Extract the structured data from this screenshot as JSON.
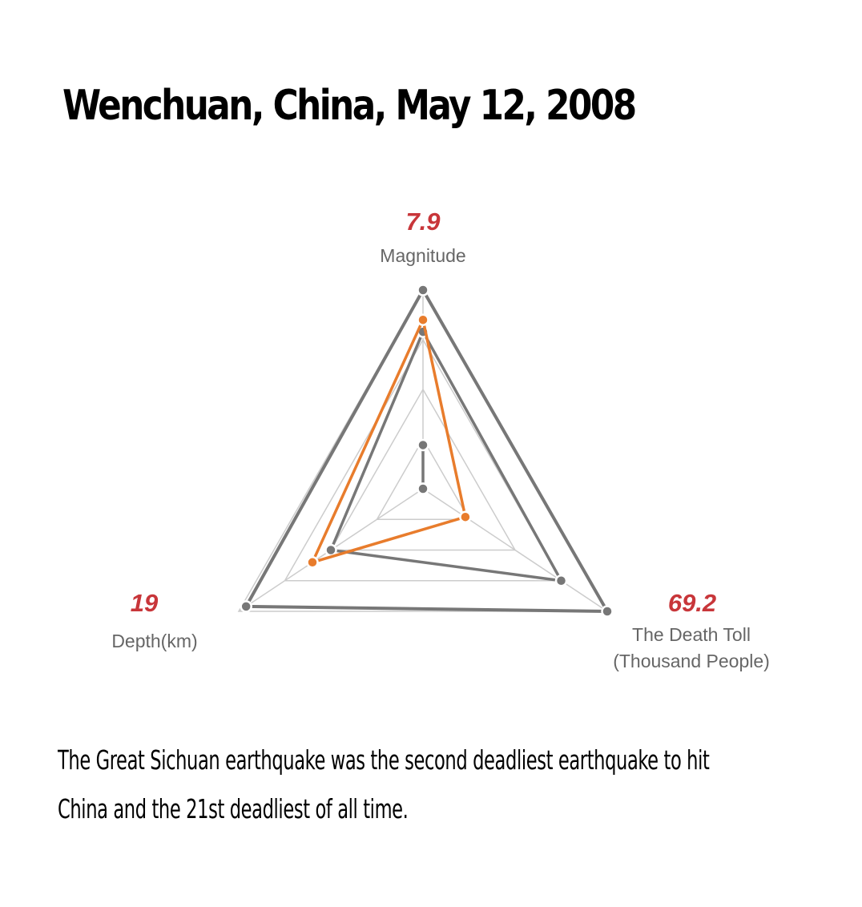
{
  "title": "Wenchuan, China, May 12, 2008",
  "description": "The Great Sichuan earthquake was the second deadliest earthquake to hit China and the 21st deadliest of all time.",
  "chart_data": {
    "type": "radar",
    "axes": [
      {
        "label": "Magnitude",
        "value_label": "7.9"
      },
      {
        "label": "The Death Toll\n(Thousand People)",
        "value_label": "69.2"
      },
      {
        "label": "Depth(km)",
        "value_label": "19"
      }
    ],
    "grid_levels": [
      0.25,
      0.5,
      0.75,
      1.0
    ],
    "series": [
      {
        "role": "outer",
        "color": "#777777",
        "values": [
          1.0,
          1.0,
          0.96
        ]
      },
      {
        "role": "highlight",
        "color": "#e87c2c",
        "values": [
          0.85,
          0.23,
          0.6
        ]
      },
      {
        "role": "comparison",
        "color": "#777777",
        "values": [
          0.79,
          0.75,
          0.5
        ]
      },
      {
        "role": "comparison",
        "color": "#777777",
        "values": [
          0.22,
          0.0,
          0.0
        ]
      }
    ],
    "colors": {
      "value_label": "#c8363a",
      "grid": "#cccccc",
      "axis_label": "#666666"
    }
  }
}
